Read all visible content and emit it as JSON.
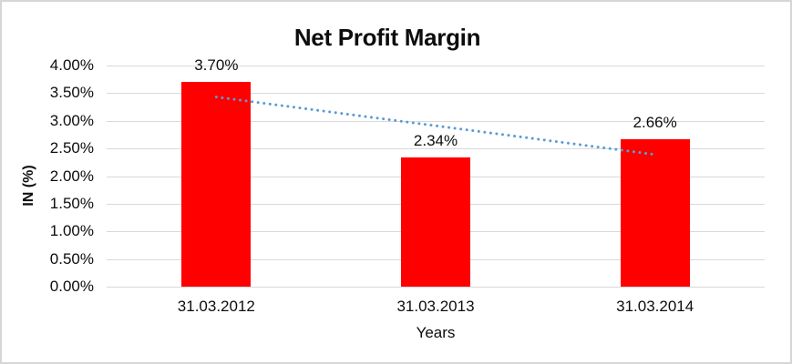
{
  "title": "Net Profit Margin",
  "chart_data": {
    "type": "bar",
    "title": "Net Profit Margin",
    "xlabel": "Years",
    "ylabel": "IN (%)",
    "categories": [
      "31.03.2012",
      "31.03.2013",
      "31.03.2014"
    ],
    "values": [
      3.7,
      2.34,
      2.66
    ],
    "data_labels": [
      "3.70%",
      "2.34%",
      "2.66%"
    ],
    "ylim": [
      0,
      4
    ],
    "ytick_step": 0.5,
    "ytick_labels": [
      "0.00%",
      "0.50%",
      "1.00%",
      "1.50%",
      "2.00%",
      "2.50%",
      "3.00%",
      "3.50%",
      "4.00%"
    ],
    "grid": true,
    "legend": false,
    "bar_color": "#ff0000",
    "gridline_color": "#d9d9d9",
    "trendline": {
      "type": "linear",
      "style": "dotted",
      "color": "#5b9bd5",
      "values": [
        3.43,
        2.91,
        2.39
      ]
    }
  }
}
